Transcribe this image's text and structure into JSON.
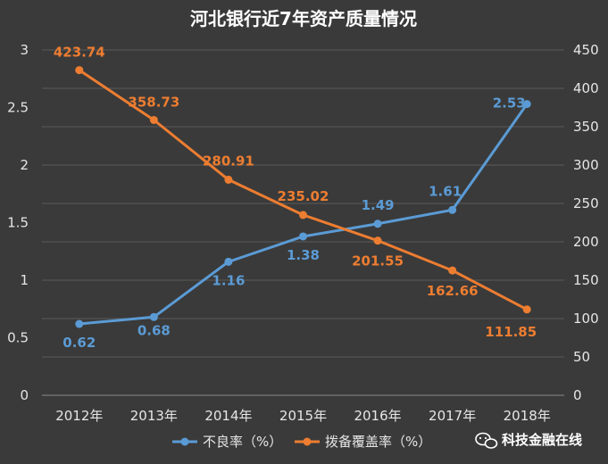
{
  "chart_data": {
    "type": "line",
    "title": "河北银行近7年资产质量情况",
    "categories": [
      "2012年",
      "2013年",
      "2014年",
      "2015年",
      "2016年",
      "2017年",
      "2018年"
    ],
    "y_left": {
      "ticks": [
        "0",
        "0.5",
        "1",
        "1.5",
        "2",
        "2.5",
        "3"
      ],
      "range": [
        0,
        3
      ]
    },
    "y_right": {
      "ticks": [
        "0",
        "50",
        "100",
        "150",
        "200",
        "250",
        "300",
        "350",
        "400",
        "450"
      ],
      "range": [
        0,
        450
      ]
    },
    "grid": true,
    "legend_position": "bottom",
    "series": [
      {
        "name": "不良率（%）",
        "axis": "left",
        "color": "#5b9bd5",
        "values": [
          0.62,
          0.68,
          1.16,
          1.38,
          1.49,
          1.61,
          2.53
        ],
        "labels": [
          "0.62",
          "0.68",
          "1.16",
          "1.38",
          "1.49",
          "1.61",
          "2.53"
        ]
      },
      {
        "name": "拨备覆盖率（%）",
        "axis": "right",
        "color": "#ed7d31",
        "values": [
          423.74,
          358.73,
          280.91,
          235.02,
          201.55,
          162.66,
          111.85
        ],
        "labels": [
          "423.74",
          "358.73",
          "280.91",
          "235.02",
          "201.55",
          "162.66",
          "111.85"
        ]
      }
    ]
  },
  "watermark": {
    "text": "科技金融在线",
    "icon": "wechat-icon"
  },
  "colors": {
    "background": "#3a3a3a",
    "grid": "#5a5a5a",
    "text": "#e6e6e6"
  }
}
